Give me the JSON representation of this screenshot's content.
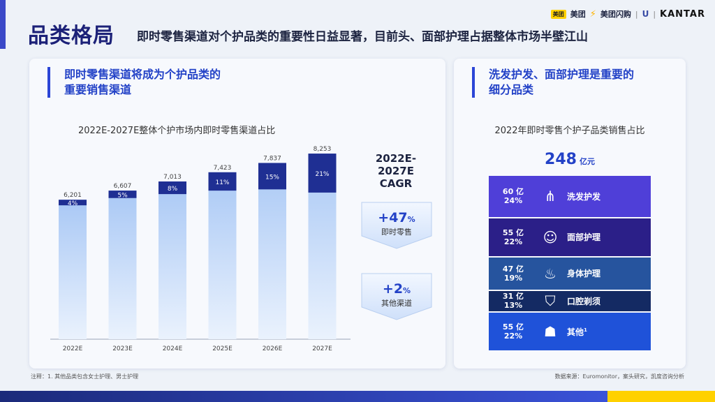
{
  "header": {
    "title": "品类格局",
    "subtitle": "即时零售渠道对个护品类的重要性日益显著，目前头、面部护理占据整体市场半壁江山",
    "logos": {
      "meituan_badge": "美团",
      "meituan": "美团",
      "meituan_shangou": "美团闪购",
      "kantar": "KANTAR"
    }
  },
  "left_panel": {
    "heading_line1": "即时零售渠道将成为个护品类的",
    "heading_line2": "重要销售渠道",
    "cagr_title_line1": "2022E-2027E",
    "cagr_title_line2": "CAGR",
    "cagr": [
      {
        "value": "+47",
        "unit": "%",
        "label": "即时零售"
      },
      {
        "value": "+2",
        "unit": "%",
        "label": "其他渠道"
      }
    ]
  },
  "right_panel": {
    "heading_line1": "洗发护发、面部护理是重要的",
    "heading_line2": "细分品类",
    "total_value": "248",
    "total_unit": "亿元"
  },
  "chart_data": [
    {
      "type": "bar",
      "title": "2022E-2027E整体个护市场内即时零售渠道占比",
      "categories": [
        "2022E",
        "2023E",
        "2024E",
        "2025E",
        "2026E",
        "2027E"
      ],
      "totals": [
        6201,
        6607,
        7013,
        7423,
        7837,
        8253
      ],
      "total_labels": [
        "6,201",
        "6,607",
        "7,013",
        "7,423",
        "7,837",
        "8,253"
      ],
      "instant_retail_share_labels": [
        "4%",
        "5%",
        "8%",
        "11%",
        "15%",
        "21%"
      ],
      "instant_retail_share": [
        4,
        5,
        8,
        11,
        15,
        21
      ],
      "colors": {
        "instant_retail": "#1f2f93",
        "other": "#a9c8f5"
      }
    },
    {
      "type": "stacked_bar",
      "title": "2022年即时零售个护子品类销售占比",
      "total": 248,
      "segments": [
        {
          "name": "洗发护发",
          "value_label": "60 亿",
          "share_label": "24%",
          "value": 60,
          "share": 24,
          "color": "#4f3fd8",
          "icon": "hair-wash-icon",
          "glyph": "⋔"
        },
        {
          "name": "面部护理",
          "value_label": "55 亿",
          "share_label": "22%",
          "value": 55,
          "share": 22,
          "color": "#2b1f88",
          "icon": "face-mask-icon",
          "glyph": "☺"
        },
        {
          "name": "身体护理",
          "value_label": "47 亿",
          "share_label": "19%",
          "value": 47,
          "share": 19,
          "color": "#26549e",
          "icon": "bathtub-icon",
          "glyph": "♨"
        },
        {
          "name": "口腔剃须",
          "value_label": "31 亿",
          "share_label": "13%",
          "value": 31,
          "share": 13,
          "color": "#142a63",
          "icon": "tooth-icon",
          "glyph": "⛉"
        },
        {
          "name": "其他",
          "footnote_mark": "1",
          "value_label": "55 亿",
          "share_label": "22%",
          "value": 55,
          "share": 22,
          "color": "#1f52d9",
          "icon": "people-icon",
          "glyph": "☗"
        }
      ]
    }
  ],
  "footer": {
    "note": "注释：1. 其他品类包含女士护理、男士护理",
    "source": "数据来源：Euromonitor，案头研究，凯度咨询分析"
  }
}
